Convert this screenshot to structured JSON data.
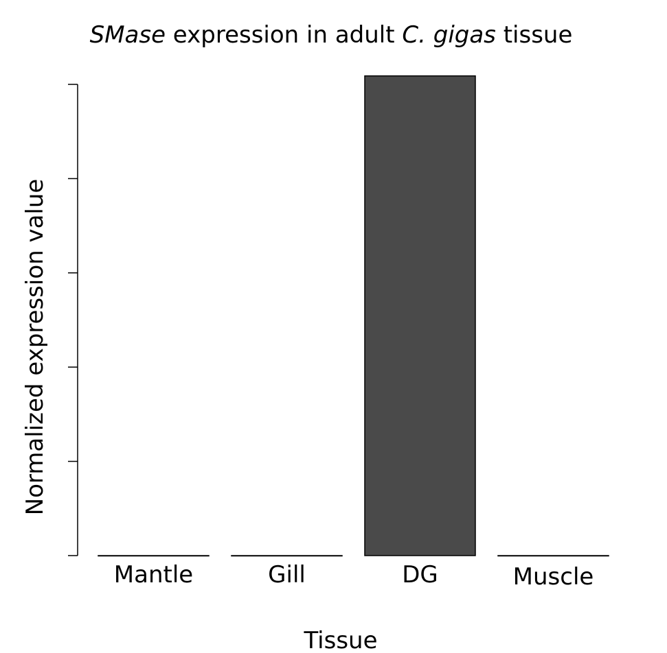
{
  "chart_data": {
    "type": "bar",
    "title_parts": [
      {
        "text": "SMase",
        "italic": true
      },
      {
        "text": " expression in adult ",
        "italic": false
      },
      {
        "text": "C. gigas",
        "italic": true
      },
      {
        "text": " tissue",
        "italic": false
      }
    ],
    "xlabel": "Tissue",
    "ylabel": "Normalized expression value",
    "categories": [
      "Mantle",
      "Gill",
      "DG",
      "Muscle"
    ],
    "values": [
      0,
      0,
      5.09,
      0
    ],
    "ylim": [
      0,
      5
    ],
    "yticks": [
      0,
      1,
      2,
      3,
      4,
      5
    ],
    "ytick_labels_shown": false,
    "bar_color": "#4a4a4a",
    "grid": false,
    "legend": "none"
  }
}
